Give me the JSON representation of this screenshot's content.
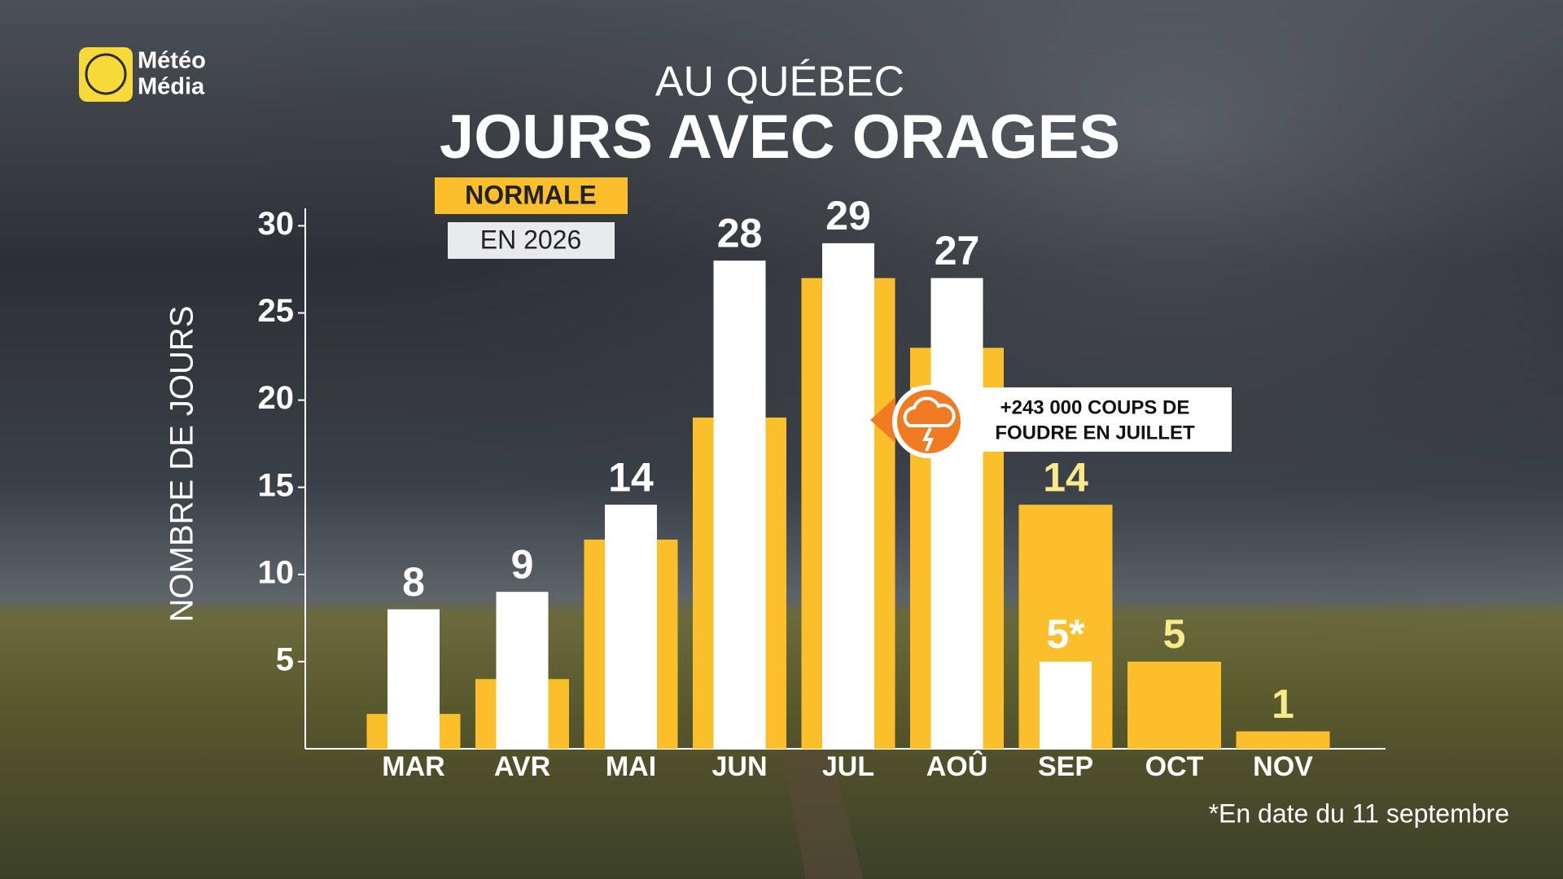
{
  "logo": [
    "Météo",
    "Média"
  ],
  "chart_data": {
    "type": "bar",
    "subtitle": "AU QUÉBEC",
    "title": "JOURS AVEC ORAGES",
    "y_label": "NOMBRE DE JOURS",
    "categories": [
      "MAR",
      "AVR",
      "MAI",
      "JUN",
      "JUL",
      "AOÛ",
      "SEP",
      "OCT",
      "NOV"
    ],
    "series": [
      {
        "name": "NORMALE",
        "color": "#fbbf2c",
        "values": [
          2,
          4,
          12,
          19,
          27,
          23,
          14,
          5,
          1
        ],
        "value_labels": [
          null,
          null,
          null,
          null,
          null,
          null,
          "14",
          "5",
          "1"
        ]
      },
      {
        "name": "EN 2026",
        "color": "#ffffff",
        "values": [
          8,
          9,
          14,
          28,
          29,
          27,
          5,
          null,
          null
        ],
        "value_labels": [
          "8",
          "9",
          "14",
          "28",
          "29",
          "27",
          "5*",
          null,
          null
        ]
      }
    ],
    "ylim": [
      0,
      31
    ],
    "yticks": [
      5,
      10,
      15,
      20,
      25,
      30
    ],
    "annotation": [
      "+243 000 COUPS DE",
      "FOUDRE EN JUILLET"
    ],
    "note": "*En date du 11 septembre"
  }
}
